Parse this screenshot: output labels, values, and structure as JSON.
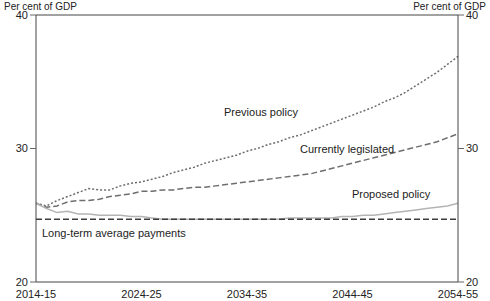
{
  "chart_data": {
    "type": "line",
    "y_label": "Per cent of GDP",
    "y2_label": "Per cent of GDP",
    "categories": [
      "2014-15",
      null,
      null,
      null,
      null,
      null,
      null,
      null,
      null,
      null,
      "2024-25",
      null,
      null,
      null,
      null,
      null,
      null,
      null,
      null,
      null,
      "2034-35",
      null,
      null,
      null,
      null,
      null,
      null,
      null,
      null,
      null,
      "2044-45",
      null,
      null,
      null,
      null,
      null,
      null,
      null,
      null,
      null,
      "2054-55"
    ],
    "ylim": [
      20,
      40
    ],
    "yticks": [
      20,
      30,
      40
    ],
    "y2lim": [
      20,
      40
    ],
    "y2ticks": [
      20,
      30,
      40
    ],
    "grid": false,
    "series": [
      {
        "name": "Previous policy",
        "color": "#6e6e6e",
        "line_style": "dotted",
        "values": [
          25.9,
          25.7,
          26.1,
          26.4,
          26.7,
          27.0,
          26.9,
          26.9,
          27.2,
          27.4,
          27.5,
          27.7,
          27.9,
          28.2,
          28.4,
          28.6,
          28.9,
          29.1,
          29.3,
          29.5,
          29.8,
          30.0,
          30.3,
          30.5,
          30.8,
          31.0,
          31.3,
          31.6,
          31.9,
          32.2,
          32.5,
          32.8,
          33.1,
          33.5,
          33.8,
          34.2,
          34.7,
          35.2,
          35.7,
          36.3,
          36.9
        ]
      },
      {
        "name": "Currently legislated",
        "color": "#6e6e6e",
        "line_style": "dashed",
        "values": [
          25.9,
          25.6,
          25.7,
          26.0,
          26.1,
          26.1,
          26.2,
          26.4,
          26.5,
          26.6,
          26.8,
          26.8,
          26.9,
          26.9,
          27.0,
          27.1,
          27.1,
          27.2,
          27.3,
          27.4,
          27.5,
          27.6,
          27.7,
          27.8,
          27.9,
          28.0,
          28.1,
          28.3,
          28.5,
          28.7,
          28.9,
          29.1,
          29.3,
          29.5,
          29.7,
          29.9,
          30.1,
          30.3,
          30.5,
          30.8,
          31.1
        ]
      },
      {
        "name": "Proposed policy",
        "color": "#b4b4b4",
        "line_style": "solid",
        "values": [
          25.9,
          25.5,
          25.2,
          25.3,
          25.1,
          25.1,
          25.0,
          25.0,
          25.0,
          24.9,
          24.9,
          24.8,
          24.7,
          24.7,
          24.7,
          24.7,
          24.7,
          24.7,
          24.7,
          24.7,
          24.7,
          24.7,
          24.7,
          24.7,
          24.8,
          24.8,
          24.8,
          24.8,
          24.8,
          24.9,
          24.9,
          25.0,
          25.0,
          25.1,
          25.2,
          25.3,
          25.4,
          25.5,
          25.6,
          25.7,
          25.9
        ]
      },
      {
        "name": "Long-term average payments",
        "color": "#3c3c3c",
        "line_style": "dashed",
        "values": [
          24.7,
          24.7,
          24.7,
          24.7,
          24.7,
          24.7,
          24.7,
          24.7,
          24.7,
          24.7,
          24.7,
          24.7,
          24.7,
          24.7,
          24.7,
          24.7,
          24.7,
          24.7,
          24.7,
          24.7,
          24.7,
          24.7,
          24.7,
          24.7,
          24.7,
          24.7,
          24.7,
          24.7,
          24.7,
          24.7,
          24.7,
          24.7,
          24.7,
          24.7,
          24.7,
          24.7,
          24.7,
          24.7,
          24.7,
          24.7,
          24.7
        ]
      }
    ]
  }
}
